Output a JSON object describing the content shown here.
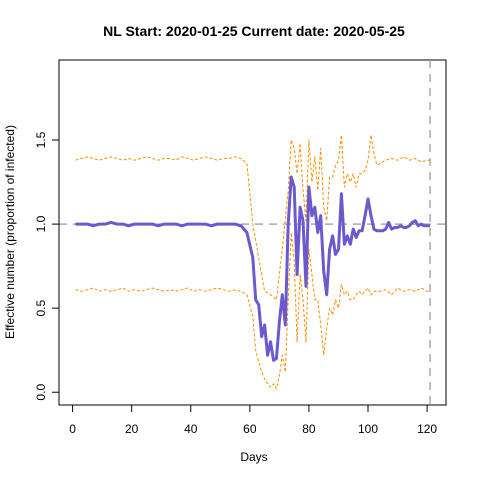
{
  "chart_data": {
    "type": "line",
    "title": "NL Start:  2020-01-25   Current date:  2020-05-25",
    "xlabel": "Days",
    "ylabel": "Effective number (proportion of infected)",
    "xlim": [
      0,
      122
    ],
    "ylim": [
      0,
      1.9
    ],
    "x_ticks": [
      0,
      20,
      40,
      60,
      80,
      100,
      120
    ],
    "y_ticks": [
      0.0,
      0.5,
      1.0,
      1.5
    ],
    "y_tick_labels": [
      "0.0",
      "0.5",
      "1.0",
      "1.5"
    ],
    "reference_lines": {
      "horizontal_y": 1.0,
      "vertical_x": 121
    },
    "colors": {
      "estimate": "#6a5acd",
      "bounds": "#ff8c00",
      "reference": "#aaaaaa"
    },
    "series": [
      {
        "role": "estimate",
        "x": [
          1,
          3,
          5,
          7,
          9,
          11,
          13,
          15,
          17,
          19,
          21,
          23,
          25,
          27,
          29,
          31,
          33,
          35,
          37,
          39,
          41,
          43,
          45,
          47,
          49,
          51,
          53,
          55,
          57,
          59,
          61,
          62,
          63,
          64,
          65,
          66,
          67,
          68,
          69,
          70,
          71,
          72,
          73,
          74,
          75,
          76,
          77,
          78,
          79,
          80,
          81,
          82,
          83,
          84,
          85,
          86,
          87,
          88,
          89,
          90,
          91,
          92,
          93,
          94,
          95,
          96,
          97,
          98,
          99,
          100,
          101,
          102,
          103,
          104,
          105,
          106,
          107,
          108,
          109,
          110,
          111,
          112,
          113,
          114,
          115,
          116,
          117,
          118,
          119,
          120,
          121
        ],
        "y": [
          1.0,
          1.0,
          1.0,
          0.99,
          1.0,
          1.0,
          1.01,
          1.0,
          1.0,
          0.99,
          1.0,
          1.0,
          1.0,
          1.0,
          0.99,
          1.0,
          1.0,
          1.0,
          0.99,
          1.0,
          1.0,
          1.0,
          1.0,
          0.99,
          1.0,
          1.0,
          1.0,
          1.0,
          0.99,
          0.95,
          0.8,
          0.55,
          0.52,
          0.33,
          0.4,
          0.22,
          0.3,
          0.19,
          0.2,
          0.42,
          0.58,
          0.4,
          1.0,
          1.28,
          1.22,
          0.7,
          1.1,
          1.02,
          0.63,
          1.22,
          1.05,
          1.1,
          0.95,
          1.05,
          0.72,
          0.58,
          0.85,
          0.93,
          0.82,
          0.85,
          1.18,
          0.88,
          0.93,
          0.88,
          0.97,
          0.92,
          0.96,
          0.96,
          1.05,
          1.15,
          1.05,
          0.97,
          0.96,
          0.96,
          0.96,
          0.97,
          1.01,
          0.97,
          0.98,
          0.98,
          0.99,
          0.98,
          0.98,
          0.99,
          1.01,
          1.02,
          0.99,
          1.0,
          0.99,
          0.99,
          0.99
        ]
      },
      {
        "role": "upper-bound",
        "x": [
          1,
          3,
          5,
          7,
          9,
          11,
          13,
          15,
          17,
          19,
          21,
          23,
          25,
          27,
          29,
          31,
          33,
          35,
          37,
          39,
          41,
          43,
          45,
          47,
          49,
          51,
          53,
          55,
          57,
          59,
          61,
          63,
          65,
          67,
          69,
          71,
          73,
          74,
          75,
          76,
          77,
          78,
          79,
          80,
          81,
          82,
          83,
          84,
          85,
          86,
          87,
          88,
          89,
          90,
          91,
          92,
          93,
          94,
          95,
          96,
          97,
          98,
          99,
          100,
          101,
          102,
          103,
          104,
          106,
          108,
          110,
          112,
          114,
          116,
          118,
          120,
          121
        ],
        "y": [
          1.38,
          1.39,
          1.4,
          1.39,
          1.38,
          1.39,
          1.4,
          1.39,
          1.38,
          1.39,
          1.38,
          1.39,
          1.4,
          1.39,
          1.38,
          1.39,
          1.39,
          1.38,
          1.4,
          1.39,
          1.38,
          1.39,
          1.4,
          1.39,
          1.38,
          1.39,
          1.39,
          1.4,
          1.39,
          1.36,
          1.0,
          0.8,
          0.6,
          0.58,
          0.55,
          0.85,
          1.2,
          1.5,
          1.45,
          1.3,
          1.48,
          1.2,
          1.02,
          1.5,
          1.25,
          1.4,
          1.2,
          1.45,
          1.1,
          1.02,
          1.28,
          1.28,
          1.35,
          1.38,
          1.53,
          1.22,
          1.3,
          1.25,
          1.3,
          1.22,
          1.3,
          1.3,
          1.32,
          1.38,
          1.53,
          1.42,
          1.35,
          1.36,
          1.38,
          1.39,
          1.38,
          1.4,
          1.38,
          1.39,
          1.37,
          1.38,
          1.38
        ]
      },
      {
        "role": "lower-bound",
        "x": [
          1,
          3,
          5,
          7,
          9,
          11,
          13,
          15,
          17,
          19,
          21,
          23,
          25,
          27,
          29,
          31,
          33,
          35,
          37,
          39,
          41,
          43,
          45,
          47,
          49,
          51,
          53,
          55,
          57,
          59,
          61,
          62,
          63,
          64,
          65,
          66,
          67,
          68,
          69,
          70,
          71,
          72,
          73,
          74,
          75,
          76,
          77,
          78,
          79,
          80,
          81,
          82,
          83,
          84,
          85,
          86,
          87,
          88,
          89,
          90,
          91,
          92,
          93,
          94,
          95,
          96,
          97,
          98,
          99,
          100,
          101,
          102,
          103,
          104,
          106,
          108,
          110,
          112,
          114,
          116,
          118,
          120,
          121
        ],
        "y": [
          0.61,
          0.6,
          0.61,
          0.62,
          0.6,
          0.61,
          0.6,
          0.61,
          0.62,
          0.6,
          0.61,
          0.6,
          0.61,
          0.62,
          0.61,
          0.6,
          0.61,
          0.6,
          0.61,
          0.62,
          0.6,
          0.61,
          0.6,
          0.61,
          0.62,
          0.61,
          0.6,
          0.61,
          0.6,
          0.58,
          0.45,
          0.25,
          0.18,
          0.12,
          0.08,
          0.05,
          0.03,
          0.05,
          0.02,
          0.1,
          0.22,
          0.12,
          0.55,
          0.95,
          0.78,
          0.3,
          0.7,
          0.55,
          0.3,
          0.85,
          0.7,
          0.55,
          0.55,
          0.4,
          0.22,
          0.38,
          0.5,
          0.46,
          0.55,
          0.5,
          0.64,
          0.58,
          0.6,
          0.55,
          0.55,
          0.58,
          0.6,
          0.58,
          0.6,
          0.62,
          0.58,
          0.6,
          0.6,
          0.6,
          0.61,
          0.58,
          0.62,
          0.6,
          0.61,
          0.6,
          0.62,
          0.6,
          0.6
        ]
      }
    ]
  }
}
